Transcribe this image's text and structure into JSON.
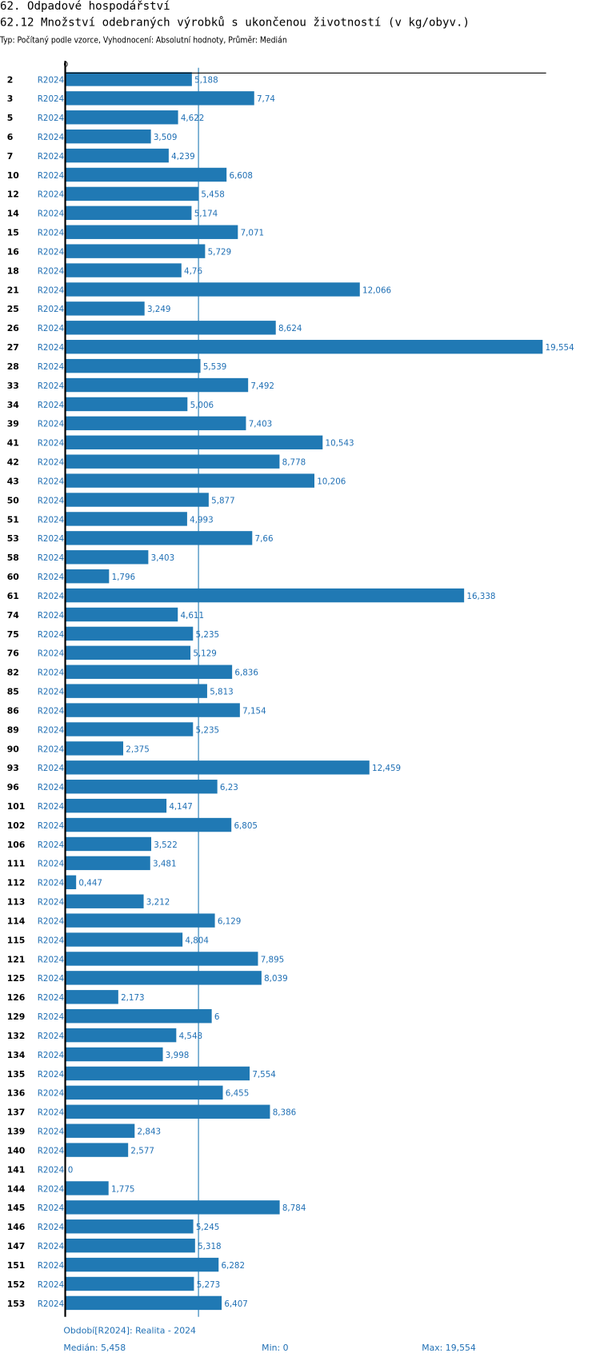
{
  "header": {
    "title": "62. Odpadové hospodářství",
    "subtitle": "62.12 Množství odebraných výrobků s ukončenou životností (v kg/obyv.)",
    "info": "Typ: Počítaný podle vzorce, Vyhodnocení: Absolutní hodnoty, Průměr: Medián"
  },
  "chart_data": {
    "type": "bar",
    "orientation": "horizontal",
    "x_tick_labels": [
      "0"
    ],
    "xlim": [
      0,
      19.554
    ],
    "median": 5.458,
    "series_label": "R2024",
    "categories": [
      "2",
      "3",
      "5",
      "6",
      "7",
      "10",
      "12",
      "14",
      "15",
      "16",
      "18",
      "21",
      "25",
      "26",
      "27",
      "28",
      "33",
      "34",
      "39",
      "41",
      "42",
      "43",
      "50",
      "51",
      "53",
      "58",
      "60",
      "61",
      "74",
      "75",
      "76",
      "82",
      "85",
      "86",
      "89",
      "90",
      "93",
      "96",
      "101",
      "102",
      "106",
      "111",
      "112",
      "113",
      "114",
      "115",
      "121",
      "125",
      "126",
      "129",
      "132",
      "134",
      "135",
      "136",
      "137",
      "139",
      "140",
      "141",
      "144",
      "145",
      "146",
      "147",
      "151",
      "152",
      "153"
    ],
    "values": [
      5.188,
      7.74,
      4.622,
      3.509,
      4.239,
      6.608,
      5.458,
      5.174,
      7.071,
      5.729,
      4.76,
      12.066,
      3.249,
      8.624,
      19.554,
      5.539,
      7.492,
      5.006,
      7.403,
      10.543,
      8.778,
      10.206,
      5.877,
      4.993,
      7.66,
      3.403,
      1.796,
      16.338,
      4.611,
      5.235,
      5.129,
      6.836,
      5.813,
      7.154,
      5.235,
      2.375,
      12.459,
      6.23,
      4.147,
      6.805,
      3.522,
      3.481,
      0.447,
      3.212,
      6.129,
      4.804,
      7.895,
      8.039,
      2.173,
      6,
      4.548,
      3.998,
      7.554,
      6.455,
      8.386,
      2.843,
      2.577,
      0,
      1.775,
      8.784,
      5.245,
      5.318,
      6.282,
      5.273,
      6.407
    ],
    "value_labels": [
      "5,188",
      "7,74",
      "4,622",
      "3,509",
      "4,239",
      "6,608",
      "5,458",
      "5,174",
      "7,071",
      "5,729",
      "4,76",
      "12,066",
      "3,249",
      "8,624",
      "19,554",
      "5,539",
      "7,492",
      "5,006",
      "7,403",
      "10,543",
      "8,778",
      "10,206",
      "5,877",
      "4,993",
      "7,66",
      "3,403",
      "1,796",
      "16,338",
      "4,611",
      "5,235",
      "5,129",
      "6,836",
      "5,813",
      "7,154",
      "5,235",
      "2,375",
      "12,459",
      "6,23",
      "4,147",
      "6,805",
      "3,522",
      "3,481",
      "0,447",
      "3,212",
      "6,129",
      "4,804",
      "7,895",
      "8,039",
      "2,173",
      "6",
      "4,548",
      "3,998",
      "7,554",
      "6,455",
      "8,386",
      "2,843",
      "2,577",
      "0",
      "1,775",
      "8,784",
      "5,245",
      "5,318",
      "6,282",
      "5,273",
      "6,407"
    ],
    "colors": {
      "bar": "#2079b4",
      "label": "#1f6fb4",
      "axis": "#000000"
    }
  },
  "footer": {
    "period": "Období[R2024]: Realita - 2024",
    "median": "Medián: 5,458",
    "min": "Min: 0",
    "max": "Max: 19,554"
  }
}
